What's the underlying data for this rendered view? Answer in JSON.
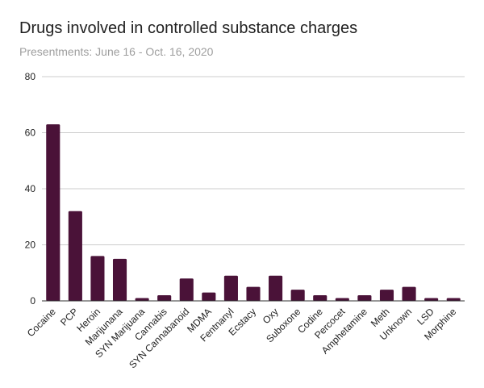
{
  "chart_data": {
    "type": "bar",
    "title": "Drugs involved in controlled substance charges",
    "subtitle": "Presentments: June 16 - Oct. 16, 2020",
    "xlabel": "",
    "ylabel": "",
    "categories": [
      "Cocaine",
      "PCP",
      "Heroin",
      "Marijunana",
      "SYN Marijuana",
      "Cannabis",
      "SYN Cannabanoid",
      "MDMA",
      "Fentnanyl",
      "Ecstacy",
      "Oxy",
      "Suboxone",
      "Codine",
      "Percocet",
      "Amphetamine",
      "Meth",
      "Unknown",
      "LSD",
      "Morphine"
    ],
    "values": [
      63,
      32,
      16,
      15,
      1,
      2,
      8,
      3,
      9,
      5,
      9,
      4,
      2,
      1,
      2,
      4,
      5,
      1,
      1
    ],
    "ylim": [
      0,
      80
    ],
    "yticks": [
      0,
      20,
      40,
      60,
      80
    ],
    "grid": true,
    "legend": "none",
    "bar_color": "#4a1238",
    "grid_color": "#cccccc",
    "baseline_color": "#333333"
  }
}
